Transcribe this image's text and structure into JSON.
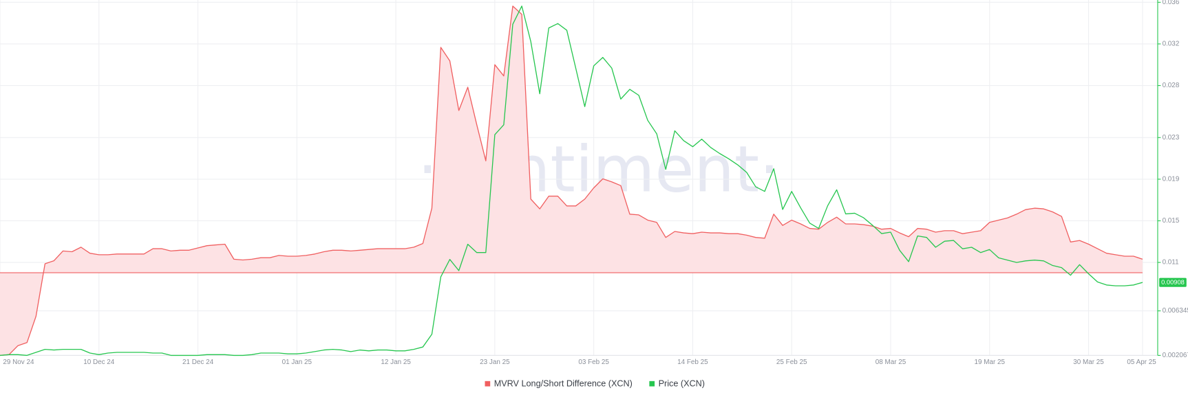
{
  "chart_data": {
    "type": "line",
    "watermark": "·santiment·",
    "categories": [
      "29 Nov 24",
      null,
      null,
      null,
      null,
      null,
      null,
      null,
      null,
      null,
      null,
      "10 Dec 24",
      null,
      null,
      null,
      null,
      null,
      null,
      null,
      null,
      null,
      null,
      "21 Dec 24",
      null,
      null,
      null,
      null,
      null,
      null,
      null,
      null,
      null,
      null,
      "01 Jan 25",
      null,
      null,
      null,
      null,
      null,
      null,
      null,
      null,
      null,
      null,
      "12 Jan 25",
      null,
      null,
      null,
      null,
      null,
      null,
      null,
      null,
      null,
      null,
      "23 Jan 25",
      null,
      null,
      null,
      null,
      null,
      null,
      null,
      null,
      null,
      null,
      "03 Feb 25",
      null,
      null,
      null,
      null,
      null,
      null,
      null,
      null,
      null,
      null,
      "14 Feb 25",
      null,
      null,
      null,
      null,
      null,
      null,
      null,
      null,
      null,
      null,
      "25 Feb 25",
      null,
      null,
      null,
      null,
      null,
      null,
      null,
      null,
      null,
      null,
      "08 Mar 25",
      null,
      null,
      null,
      null,
      null,
      null,
      null,
      null,
      null,
      null,
      "19 Mar 25",
      null,
      null,
      null,
      null,
      null,
      null,
      null,
      null,
      null,
      null,
      "30 Mar 25",
      null,
      null,
      null,
      null,
      null,
      "05 Apr 25"
    ],
    "ylim": [
      -11,
      36
    ],
    "y2lim": [
      0.002067,
      0.036
    ],
    "y2ticks": [
      0.002067,
      0.006345,
      0.011,
      0.015,
      0.019,
      0.023,
      0.028,
      0.032,
      0.036
    ],
    "grid": true,
    "legend": "bottom",
    "series": [
      {
        "name": "MVRV Long/Short Difference (XCN)",
        "color": "#f05f60",
        "area_color": "#fde2e4",
        "values": [
          -11.0,
          -10.9,
          -9.7,
          -9.3,
          -5.8,
          1.2,
          1.6,
          2.9,
          2.8,
          3.4,
          2.6,
          2.4,
          2.4,
          2.5,
          2.5,
          2.5,
          2.5,
          3.2,
          3.2,
          2.9,
          3.0,
          3.0,
          3.3,
          3.6,
          3.7,
          3.8,
          1.8,
          1.7,
          1.8,
          2.0,
          2.0,
          2.3,
          2.2,
          2.2,
          2.3,
          2.5,
          2.8,
          3.0,
          3.0,
          2.9,
          3.0,
          3.1,
          3.2,
          3.2,
          3.2,
          3.2,
          3.4,
          3.9,
          8.6,
          30.0,
          28.2,
          21.6,
          24.7,
          19.7,
          14.9,
          27.7,
          26.2,
          35.5,
          34.4,
          9.8,
          8.5,
          10.2,
          10.2,
          8.9,
          8.9,
          9.8,
          11.3,
          12.5,
          12.1,
          11.6,
          7.8,
          7.7,
          7.0,
          6.7,
          4.7,
          5.5,
          5.3,
          5.2,
          5.4,
          5.3,
          5.3,
          5.2,
          5.2,
          5.0,
          4.7,
          4.6,
          7.8,
          6.3,
          7.0,
          6.5,
          5.9,
          5.8,
          6.7,
          7.4,
          6.5,
          6.5,
          6.4,
          6.2,
          5.8,
          5.9,
          5.3,
          4.8,
          5.9,
          5.8,
          5.4,
          5.6,
          5.6,
          5.2,
          5.4,
          5.6,
          6.7,
          7.0,
          7.3,
          7.8,
          8.4,
          8.6,
          8.5,
          8.1,
          7.5,
          4.1,
          4.3,
          3.8,
          3.2,
          2.6,
          2.4,
          2.2,
          2.2,
          1.8
        ]
      },
      {
        "name": "Price (XCN)",
        "color": "#26c64f",
        "axis": "y2",
        "values": [
          0.00207,
          0.00214,
          0.00214,
          0.00207,
          0.00236,
          0.00265,
          0.00258,
          0.00265,
          0.00265,
          0.00265,
          0.00229,
          0.00214,
          0.00229,
          0.00236,
          0.00236,
          0.00236,
          0.00236,
          0.00229,
          0.00229,
          0.00207,
          0.00207,
          0.00207,
          0.00207,
          0.00214,
          0.00214,
          0.00214,
          0.00207,
          0.00207,
          0.00214,
          0.00229,
          0.00229,
          0.00229,
          0.00221,
          0.00221,
          0.00229,
          0.00243,
          0.00258,
          0.00265,
          0.00258,
          0.00243,
          0.00258,
          0.0025,
          0.00258,
          0.00258,
          0.0025,
          0.0025,
          0.00265,
          0.00287,
          0.0041,
          0.00962,
          0.01129,
          0.01021,
          0.01275,
          0.01195,
          0.01195,
          0.02328,
          0.02423,
          0.03389,
          0.03564,
          0.03222,
          0.02721,
          0.03353,
          0.03396,
          0.03331,
          0.02968,
          0.02597,
          0.0299,
          0.0307,
          0.02968,
          0.0267,
          0.02764,
          0.02706,
          0.02466,
          0.02336,
          0.01994,
          0.02365,
          0.0227,
          0.02212,
          0.02285,
          0.02205,
          0.02147,
          0.02096,
          0.02038,
          0.01965,
          0.01827,
          0.01783,
          0.02001,
          0.01609,
          0.01783,
          0.01624,
          0.01478,
          0.01427,
          0.01645,
          0.01798,
          0.01566,
          0.01573,
          0.01529,
          0.01456,
          0.01377,
          0.01391,
          0.01217,
          0.01108,
          0.01355,
          0.0134,
          0.01246,
          0.01304,
          0.01311,
          0.01231,
          0.01246,
          0.01195,
          0.01224,
          0.01144,
          0.01122,
          0.011,
          0.01115,
          0.01122,
          0.01115,
          0.01071,
          0.0105,
          0.00977,
          0.01079,
          0.00991,
          0.00912,
          0.00883,
          0.00875,
          0.00875,
          0.00883,
          0.00908
        ]
      }
    ]
  }
}
